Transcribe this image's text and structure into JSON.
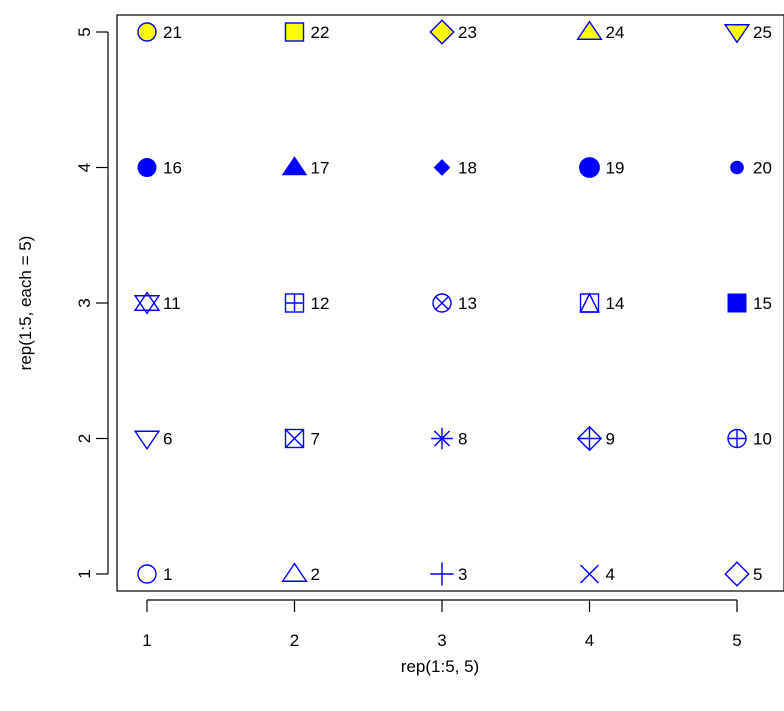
{
  "chart_data": {
    "type": "scatter",
    "title": "",
    "xlabel": "rep(1:5, 5)",
    "ylabel": "rep(1:5, each = 5)",
    "xlim": [
      1,
      5
    ],
    "ylim": [
      1,
      5
    ],
    "xticks": [
      "1",
      "2",
      "3",
      "4",
      "5"
    ],
    "yticks": [
      "1",
      "2",
      "3",
      "4",
      "5"
    ],
    "grid": false,
    "colors": {
      "stroke": "#0000ff",
      "fill": "#ffff00"
    },
    "points": [
      {
        "x": 1,
        "y": 1,
        "pch": 1,
        "label": "1"
      },
      {
        "x": 2,
        "y": 1,
        "pch": 2,
        "label": "2"
      },
      {
        "x": 3,
        "y": 1,
        "pch": 3,
        "label": "3"
      },
      {
        "x": 4,
        "y": 1,
        "pch": 4,
        "label": "4"
      },
      {
        "x": 5,
        "y": 1,
        "pch": 5,
        "label": "5"
      },
      {
        "x": 1,
        "y": 2,
        "pch": 6,
        "label": "6"
      },
      {
        "x": 2,
        "y": 2,
        "pch": 7,
        "label": "7"
      },
      {
        "x": 3,
        "y": 2,
        "pch": 8,
        "label": "8"
      },
      {
        "x": 4,
        "y": 2,
        "pch": 9,
        "label": "9"
      },
      {
        "x": 5,
        "y": 2,
        "pch": 10,
        "label": "10"
      },
      {
        "x": 1,
        "y": 3,
        "pch": 11,
        "label": "11"
      },
      {
        "x": 2,
        "y": 3,
        "pch": 12,
        "label": "12"
      },
      {
        "x": 3,
        "y": 3,
        "pch": 13,
        "label": "13"
      },
      {
        "x": 4,
        "y": 3,
        "pch": 14,
        "label": "14"
      },
      {
        "x": 5,
        "y": 3,
        "pch": 15,
        "label": "15"
      },
      {
        "x": 1,
        "y": 4,
        "pch": 16,
        "label": "16"
      },
      {
        "x": 2,
        "y": 4,
        "pch": 17,
        "label": "17"
      },
      {
        "x": 3,
        "y": 4,
        "pch": 18,
        "label": "18"
      },
      {
        "x": 4,
        "y": 4,
        "pch": 19,
        "label": "19"
      },
      {
        "x": 5,
        "y": 4,
        "pch": 20,
        "label": "20"
      },
      {
        "x": 1,
        "y": 5,
        "pch": 21,
        "label": "21"
      },
      {
        "x": 2,
        "y": 5,
        "pch": 22,
        "label": "22"
      },
      {
        "x": 3,
        "y": 5,
        "pch": 23,
        "label": "23"
      },
      {
        "x": 4,
        "y": 5,
        "pch": 24,
        "label": "24"
      },
      {
        "x": 5,
        "y": 5,
        "pch": 25,
        "label": "25"
      }
    ]
  }
}
